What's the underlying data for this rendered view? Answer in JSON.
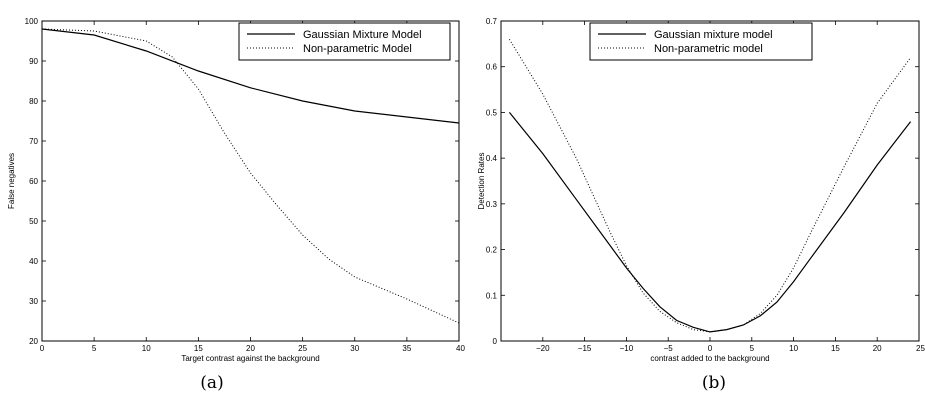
{
  "chart_data": [
    {
      "type": "line",
      "caption": "(a)",
      "xlabel": "Target contrast against the background",
      "ylabel": "False negatives",
      "xlim": [
        0,
        40
      ],
      "ylim": [
        20,
        100
      ],
      "xticks": [
        0,
        5,
        10,
        15,
        20,
        25,
        30,
        35,
        40
      ],
      "yticks": [
        20,
        30,
        40,
        50,
        60,
        70,
        80,
        90,
        100
      ],
      "grid": false,
      "legend_position": "top-right",
      "series": [
        {
          "name": "Gaussian Mixture Model",
          "style": "solid",
          "x": [
            0,
            5,
            10,
            15,
            20,
            25,
            30,
            35,
            40
          ],
          "y": [
            98,
            96.5,
            92.5,
            87.5,
            83.3,
            80,
            77.5,
            76,
            74.5
          ]
        },
        {
          "name": "Non-parametric Model",
          "style": "dotted",
          "x": [
            0,
            5,
            10,
            12.5,
            15,
            17.5,
            20,
            22.5,
            25,
            27.5,
            30,
            35,
            40
          ],
          "y": [
            98,
            97.5,
            95,
            91,
            83,
            72,
            62,
            54,
            46.5,
            40.5,
            36,
            30.5,
            24.5
          ]
        }
      ]
    },
    {
      "type": "line",
      "caption": "(b)",
      "xlabel": "contrast added to the background",
      "ylabel": "Detection Rates",
      "xlim": [
        -25,
        25
      ],
      "ylim": [
        0,
        0.7
      ],
      "xticks": [
        -20,
        -15,
        -10,
        -5,
        0,
        5,
        10,
        15,
        20,
        25
      ],
      "xtick_labels": [
        "−20",
        "−15",
        "−10",
        "−5",
        "0",
        "5",
        "10",
        "15",
        "20",
        "25"
      ],
      "yticks": [
        0,
        0.1,
        0.2,
        0.3,
        0.4,
        0.5,
        0.6,
        0.7
      ],
      "grid": false,
      "legend_position": "top-center",
      "series": [
        {
          "name": "Gaussian mixture model",
          "style": "solid",
          "x": [
            -24,
            -20,
            -16,
            -12,
            -10,
            -8,
            -6,
            -4,
            -2,
            0,
            2,
            4,
            6,
            8,
            10,
            12,
            16,
            20,
            24
          ],
          "y": [
            0.5,
            0.41,
            0.31,
            0.21,
            0.16,
            0.115,
            0.075,
            0.045,
            0.03,
            0.02,
            0.025,
            0.035,
            0.055,
            0.085,
            0.13,
            0.18,
            0.28,
            0.385,
            0.48
          ]
        },
        {
          "name": "Non-parametric model",
          "style": "dotted",
          "x": [
            -24,
            -20,
            -16,
            -12,
            -10,
            -8,
            -6,
            -4,
            -2,
            0,
            2,
            4,
            6,
            8,
            10,
            12,
            16,
            20,
            24
          ],
          "y": [
            0.66,
            0.54,
            0.4,
            0.24,
            0.165,
            0.105,
            0.065,
            0.04,
            0.025,
            0.02,
            0.025,
            0.035,
            0.06,
            0.1,
            0.16,
            0.235,
            0.38,
            0.52,
            0.62
          ]
        }
      ]
    }
  ]
}
